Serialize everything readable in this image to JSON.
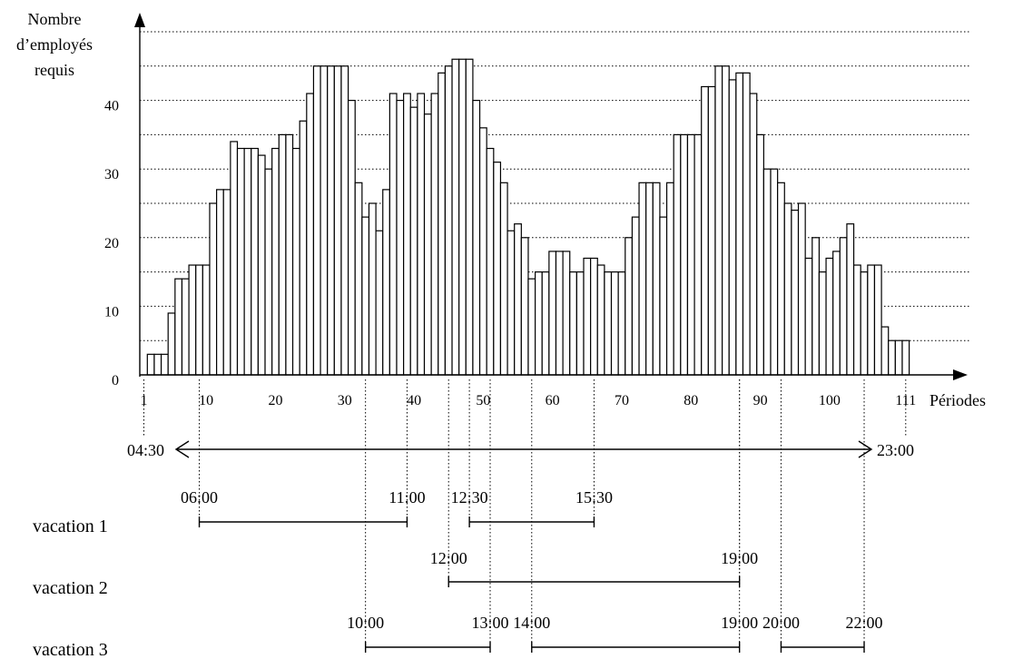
{
  "chart_data": {
    "type": "bar",
    "ylabel_lines": [
      "Nombre",
      "d’employés",
      "requis"
    ],
    "xlabel": "Périodes",
    "ylim": [
      0,
      48
    ],
    "xlim": [
      1,
      111
    ],
    "y_ticks": [
      0,
      10,
      20,
      30,
      40
    ],
    "x_ticks": [
      1,
      10,
      20,
      30,
      40,
      50,
      60,
      70,
      80,
      90,
      100,
      111
    ],
    "grid_y": [
      5,
      10,
      15,
      20,
      25,
      30,
      35,
      40,
      45,
      50
    ],
    "values": [
      0,
      3,
      3,
      3,
      9,
      14,
      14,
      16,
      16,
      16,
      25,
      27,
      27,
      34,
      33,
      33,
      33,
      32,
      30,
      33,
      35,
      35,
      33,
      37,
      41,
      45,
      45,
      45,
      45,
      45,
      40,
      28,
      23,
      25,
      21,
      27,
      41,
      40,
      41,
      39,
      41,
      38,
      41,
      44,
      45,
      46,
      46,
      46,
      40,
      36,
      33,
      31,
      28,
      21,
      22,
      20,
      14,
      15,
      15,
      18,
      18,
      18,
      15,
      15,
      17,
      17,
      16,
      15,
      15,
      15,
      20,
      23,
      28,
      28,
      28,
      23,
      28,
      35,
      35,
      35,
      35,
      42,
      42,
      45,
      45,
      43,
      44,
      44,
      41,
      35,
      30,
      30,
      28,
      25,
      24,
      25,
      17,
      20,
      15,
      17,
      18,
      20,
      22,
      16,
      15,
      16,
      16,
      7,
      5,
      5,
      5
    ]
  },
  "time_range": {
    "start": "04:30",
    "end": "23:00",
    "start_period": 1,
    "end_period": 111
  },
  "vacations": [
    {
      "label": "vacation 1",
      "segments": [
        {
          "start": "06:00",
          "end": "11:00",
          "from": 9,
          "to": 39
        },
        {
          "start": "12:30",
          "end": "15:30",
          "from": 48,
          "to": 66
        }
      ]
    },
    {
      "label": "vacation 2",
      "segments": [
        {
          "start": "12:00",
          "end": "19:00",
          "from": 45,
          "to": 87
        }
      ]
    },
    {
      "label": "vacation 3",
      "segments": [
        {
          "start": "10:00",
          "end": "13:00",
          "from": 33,
          "to": 51
        },
        {
          "start": "14:00",
          "end": "19:00",
          "from": 57,
          "to": 87
        },
        {
          "start": "20:00",
          "end": "22:00",
          "from": 93,
          "to": 105
        }
      ]
    }
  ]
}
